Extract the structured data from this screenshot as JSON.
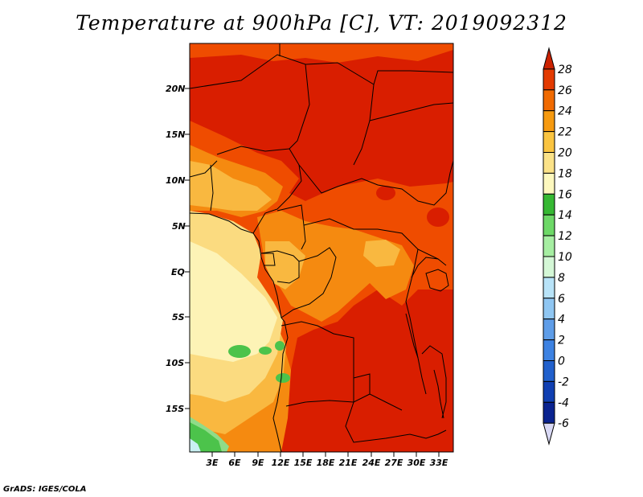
{
  "title": "Temperature at 900hPa [C], VT: 2019092312",
  "credit": "GrADS: IGES/COLA",
  "lat_labels": [
    "20N",
    "15N",
    "10N",
    "5N",
    "EQ",
    "5S",
    "10S",
    "15S"
  ],
  "lon_labels": [
    "3E",
    "6E",
    "9E",
    "12E",
    "15E",
    "18E",
    "21E",
    "24E",
    "27E",
    "30E",
    "33E"
  ],
  "colorbar": {
    "levels": [
      "28",
      "26",
      "24",
      "22",
      "20",
      "18",
      "16",
      "14",
      "12",
      "10",
      "8",
      "6",
      "4",
      "2",
      "0",
      "-2",
      "-4",
      "-6"
    ],
    "colors": [
      "#cc2200",
      "#e33a00",
      "#f06a00",
      "#f69a10",
      "#fac440",
      "#fbe288",
      "#fdf8be",
      "#36b833",
      "#6dd867",
      "#a6eea2",
      "#d4f7d6",
      "#b8e3f8",
      "#8fc6f2",
      "#5e9de8",
      "#3d82e2",
      "#2160cc",
      "#103fb2",
      "#0a2390",
      "#090a68",
      "#d9d9f5"
    ]
  },
  "map_colors": {
    "hot": "#d91e00",
    "warm": "#ef4c00",
    "orange": "#f58a10",
    "gold": "#f9b840",
    "light": "#fbdb80",
    "pale": "#fdf3b6",
    "green": "#4cc34b",
    "lgreen": "#8fdc88",
    "cyan": "#c9f0f2",
    "border": "#000000"
  }
}
